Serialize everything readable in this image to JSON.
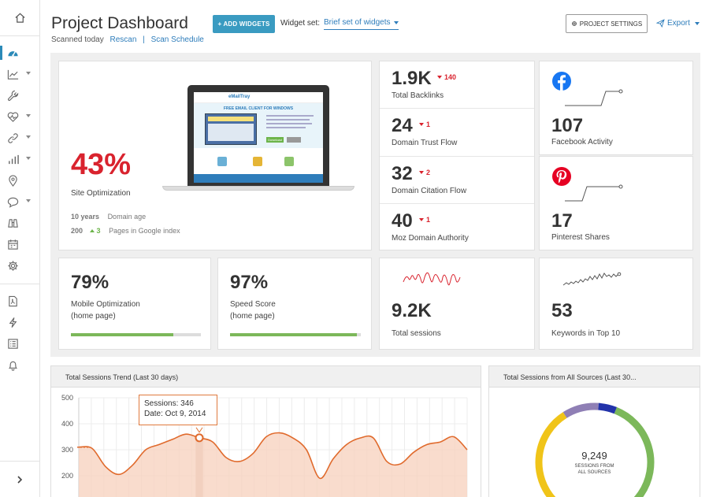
{
  "sidebar": {
    "items": [
      {
        "icon": "home-icon"
      },
      {
        "icon": "dashboard-gauge-icon",
        "active": true
      },
      {
        "icon": "rankings-chart-icon",
        "caret": true
      },
      {
        "icon": "wrench-icon"
      },
      {
        "icon": "heartbeat-icon",
        "caret": true
      },
      {
        "icon": "link-icon",
        "caret": true
      },
      {
        "icon": "bar-chart-icon",
        "caret": true
      },
      {
        "icon": "map-pin-icon"
      },
      {
        "icon": "speech-bubble-icon",
        "caret": true
      },
      {
        "icon": "binoculars-icon"
      },
      {
        "icon": "calendar-icon"
      },
      {
        "icon": "gear-icon"
      },
      {
        "icon": "pdf-document-icon"
      },
      {
        "icon": "lightning-icon"
      },
      {
        "icon": "list-icon"
      },
      {
        "icon": "bell-icon"
      }
    ],
    "expand_icon": "chevron-right-icon"
  },
  "header": {
    "title": "Project Dashboard",
    "scanned": "Scanned today",
    "rescan": "Rescan",
    "separator": "|",
    "scan_schedule": "Scan Schedule",
    "add_widgets": "+ ADD WIDGETS",
    "widget_set_label": "Widget set:",
    "widget_set_value": "Brief set of widgets",
    "project_settings": "PROJECT SETTINGS",
    "export": "Export"
  },
  "site_optimization": {
    "value": "43%",
    "label": "Site Optimization",
    "domain_age_value": "10 years",
    "domain_age_label": "Domain age",
    "pages_value": "200",
    "pages_delta": "3",
    "pages_label": "Pages in Google index",
    "preview": {
      "brand": "eMailTray",
      "headline": "FREE EMAIL CLIENT FOR WINDOWS",
      "button": "Download"
    }
  },
  "metrics": [
    {
      "value": "1.9K",
      "delta": "140",
      "label": "Total Backlinks"
    },
    {
      "value": "24",
      "delta": "1",
      "label": "Domain Trust Flow"
    },
    {
      "value": "32",
      "delta": "2",
      "label": "Domain Citation Flow"
    },
    {
      "value": "40",
      "delta": "1",
      "label": "Moz Domain Authority"
    }
  ],
  "social": [
    {
      "icon": "facebook-icon",
      "value": "107",
      "label": "Facebook Activity",
      "color": "#1877f2"
    },
    {
      "icon": "pinterest-icon",
      "value": "17",
      "label": "Pinterest Shares",
      "color": "#e60023"
    }
  ],
  "progress": [
    {
      "value": "79%",
      "label_line1": "Mobile Optimization",
      "label_line2": "(home page)",
      "fraction": 0.79
    },
    {
      "value": "97%",
      "label_line1": "Speed Score",
      "label_line2": "(home page)",
      "fraction": 0.97
    }
  ],
  "sessions": {
    "value": "9.2K",
    "label": "Total sessions"
  },
  "keywords": {
    "value": "53",
    "label": "Keywords in Top 10"
  },
  "trend": {
    "title": "Total Sessions Trend (Last 30 days)",
    "tooltip_line1": "Sessions: 346",
    "tooltip_line2": "Date: Oct 9, 2014"
  },
  "sources": {
    "title": "Total Sessions from All Sources (Last 30...",
    "total": "9,249",
    "caption_line1": "SESSIONS FROM",
    "caption_line2": "ALL SOURCES"
  },
  "chart_data": [
    {
      "type": "area",
      "title": "Total Sessions Trend (Last 30 days)",
      "xlabel": "",
      "ylabel": "",
      "yticks": [
        200,
        300,
        400,
        500
      ],
      "ylim": [
        150,
        500
      ],
      "grid": true,
      "highlight": {
        "index": 9,
        "value": 346,
        "date": "Oct 9, 2014"
      },
      "values": [
        310,
        305,
        235,
        205,
        240,
        300,
        320,
        340,
        360,
        346,
        330,
        270,
        255,
        285,
        350,
        365,
        345,
        300,
        190,
        265,
        320,
        345,
        345,
        255,
        245,
        290,
        320,
        330,
        350,
        300
      ]
    },
    {
      "type": "pie",
      "title": "Total Sessions from All Sources (Last 30...",
      "total": 9249,
      "slices": [
        {
          "color": "#7cb85a",
          "fraction": 0.57
        },
        {
          "color": "#f0c419",
          "fraction": 0.28
        },
        {
          "color": "#8f7fb5",
          "fraction": 0.1
        },
        {
          "color": "#2233aa",
          "fraction": 0.05
        }
      ]
    }
  ]
}
